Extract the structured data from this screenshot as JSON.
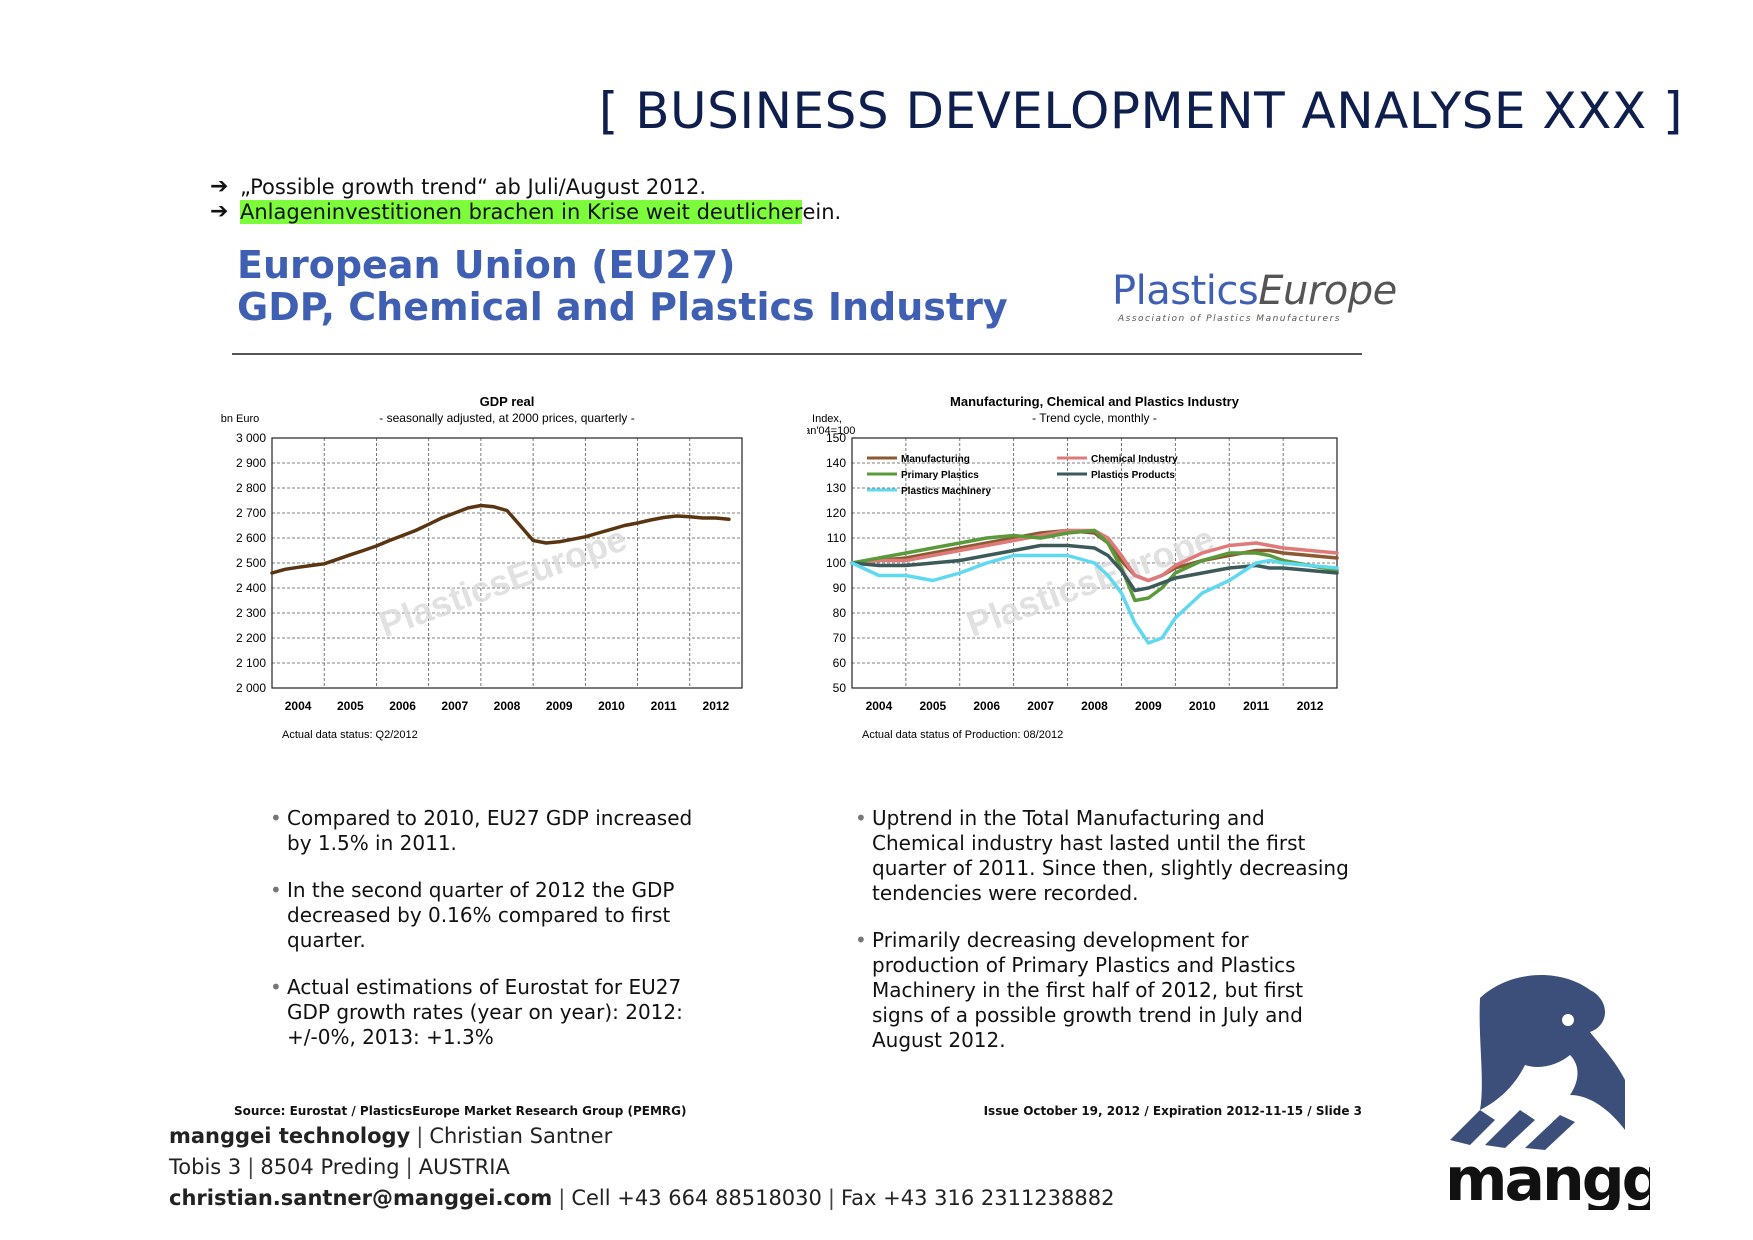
{
  "header": {
    "title": "[ BUSINESS DEVELOPMENT ANALYSE XXX ]"
  },
  "bullets": [
    {
      "text": "„Possible growth trend“ ab Juli/August 2012."
    },
    {
      "highlighted": "Anlageninvestitionen brachen in Krise weit deutlicher",
      "rest": " ein."
    }
  ],
  "slide": {
    "title_line1": "European Union (EU27)",
    "title_line2": "GDP, Chemical and Plastics Industry",
    "logo_main": "Plastics",
    "logo_italic": "Europe",
    "logo_sub": "Association of Plastics Manufacturers",
    "left_points": [
      "Compared to 2010, EU27 GDP increased by 1.5% in 2011.",
      "In the second quarter of 2012 the GDP decreased by 0.16% compared to first quarter.",
      "Actual estimations of Eurostat for EU27 GDP growth rates (year on year): 2012: +/-0%, 2013: +1.3%"
    ],
    "right_points": [
      "Uptrend in the Total Manufacturing and Chemical industry hast lasted until the first quarter of 2011. Since then, slightly decreasing tendencies were recorded.",
      "Primarily decreasing development for production of Primary Plastics and Plastics Machinery in the first half of 2012, but first signs of a possible growth trend in July and August 2012."
    ],
    "source": "Source: Eurostat / PlasticsEurope Market Research Group (PEMRG)",
    "issue": "Issue October 19, 2012 / Expiration 2012-11-15 / Slide 3"
  },
  "chart_data": [
    {
      "type": "line",
      "title": "GDP real",
      "subtitle": "- seasonally adjusted, at 2000 prices, quarterly -",
      "ylabel": "bn Euro",
      "ylim": [
        2000,
        3000
      ],
      "yticks": [
        "3 000",
        "2 900",
        "2 800",
        "2 700",
        "2 600",
        "2 500",
        "2 400",
        "2 300",
        "2 200",
        "2 100",
        "2 000"
      ],
      "xticks": [
        "2004",
        "2005",
        "2006",
        "2007",
        "2008",
        "2009",
        "2010",
        "2011",
        "2012"
      ],
      "xlim": [
        2003.5,
        2012.5
      ],
      "note": "Actual data status: Q2/2012",
      "watermark": "PlasticsEurope",
      "series": [
        {
          "color": "#5a3512",
          "x": [
            2003.5,
            2003.75,
            2004.0,
            2004.25,
            2004.5,
            2004.75,
            2005.0,
            2005.25,
            2005.5,
            2005.75,
            2006.0,
            2006.25,
            2006.5,
            2006.75,
            2007.0,
            2007.25,
            2007.5,
            2007.75,
            2008.0,
            2008.25,
            2008.5,
            2008.75,
            2009.0,
            2009.25,
            2009.5,
            2009.75,
            2010.0,
            2010.25,
            2010.5,
            2010.75,
            2011.0,
            2011.25,
            2011.5,
            2011.75,
            2012.0,
            2012.25
          ],
          "y": [
            2460,
            2475,
            2483,
            2490,
            2497,
            2515,
            2533,
            2550,
            2568,
            2590,
            2610,
            2630,
            2655,
            2680,
            2700,
            2720,
            2730,
            2725,
            2710,
            2650,
            2590,
            2580,
            2585,
            2595,
            2605,
            2620,
            2635,
            2650,
            2660,
            2672,
            2682,
            2688,
            2685,
            2680,
            2680,
            2675
          ]
        }
      ]
    },
    {
      "type": "line",
      "title": "Manufacturing, Chemical and Plastics Industry",
      "subtitle": "- Trend cycle, monthly -",
      "ylabel": "Index, Jan'04=100",
      "ylim": [
        50,
        150
      ],
      "yticks": [
        "150",
        "140",
        "130",
        "120",
        "110",
        "100",
        "90",
        "80",
        "70",
        "60",
        "50"
      ],
      "xticks": [
        "2004",
        "2005",
        "2006",
        "2007",
        "2008",
        "2009",
        "2010",
        "2011",
        "2012"
      ],
      "xlim": [
        2003.5,
        2012.5
      ],
      "note": "Actual data status of Production: 08/2012",
      "watermark": "PlasticsEurope",
      "series": [
        {
          "name": "Manufacturing",
          "color": "#8b5a33",
          "x": [
            2003.5,
            2004.0,
            2004.5,
            2005.0,
            2005.5,
            2006.0,
            2006.5,
            2007.0,
            2007.5,
            2008.0,
            2008.25,
            2008.5,
            2008.75,
            2009.0,
            2009.25,
            2009.5,
            2010.0,
            2010.5,
            2011.0,
            2011.25,
            2011.5,
            2012.0,
            2012.5
          ],
          "y": [
            100,
            101,
            102,
            104,
            106,
            108,
            110,
            112,
            113,
            112,
            108,
            101,
            95,
            93,
            95,
            98,
            101,
            103,
            105,
            105,
            104,
            103,
            102
          ]
        },
        {
          "name": "Chemical Industry",
          "color": "#e07a7a",
          "x": [
            2003.5,
            2004.0,
            2004.5,
            2005.0,
            2005.5,
            2006.0,
            2006.5,
            2007.0,
            2007.5,
            2008.0,
            2008.25,
            2008.5,
            2008.75,
            2009.0,
            2009.25,
            2009.5,
            2010.0,
            2010.5,
            2011.0,
            2011.25,
            2011.5,
            2012.0,
            2012.5
          ],
          "y": [
            100,
            101,
            101,
            103,
            105,
            107,
            109,
            111,
            113,
            113,
            110,
            103,
            95,
            93,
            95,
            99,
            104,
            107,
            108,
            107,
            106,
            105,
            104
          ]
        },
        {
          "name": "Primary Plastics",
          "color": "#5a9a3a",
          "x": [
            2003.5,
            2004.0,
            2004.5,
            2005.0,
            2005.5,
            2006.0,
            2006.5,
            2007.0,
            2007.5,
            2008.0,
            2008.25,
            2008.5,
            2008.75,
            2009.0,
            2009.25,
            2009.5,
            2010.0,
            2010.5,
            2011.0,
            2011.25,
            2011.5,
            2012.0,
            2012.5
          ],
          "y": [
            100,
            102,
            104,
            106,
            108,
            110,
            111,
            110,
            112,
            113,
            108,
            98,
            85,
            86,
            90,
            96,
            101,
            104,
            104,
            103,
            101,
            99,
            97
          ]
        },
        {
          "name": "Plastics Products",
          "color": "#3d5a5a",
          "x": [
            2003.5,
            2004.0,
            2004.5,
            2005.0,
            2005.5,
            2006.0,
            2006.5,
            2007.0,
            2007.5,
            2008.0,
            2008.25,
            2008.5,
            2008.75,
            2009.0,
            2009.25,
            2009.5,
            2010.0,
            2010.5,
            2011.0,
            2011.25,
            2011.5,
            2012.0,
            2012.5
          ],
          "y": [
            100,
            99,
            99,
            100,
            101,
            103,
            105,
            107,
            107,
            106,
            103,
            97,
            89,
            90,
            92,
            94,
            96,
            98,
            99,
            98,
            98,
            97,
            96
          ]
        },
        {
          "name": "Plastics Machinery",
          "color": "#5fd9f0",
          "x": [
            2003.5,
            2004.0,
            2004.5,
            2005.0,
            2005.5,
            2006.0,
            2006.5,
            2007.0,
            2007.5,
            2008.0,
            2008.25,
            2008.5,
            2008.75,
            2009.0,
            2009.25,
            2009.5,
            2010.0,
            2010.5,
            2011.0,
            2011.25,
            2011.5,
            2012.0,
            2012.5
          ],
          "y": [
            100,
            95,
            95,
            93,
            96,
            100,
            103,
            103,
            103,
            100,
            95,
            88,
            76,
            68,
            70,
            78,
            88,
            93,
            100,
            101,
            100,
            99,
            98
          ]
        }
      ]
    }
  ],
  "footer": {
    "company": "manggei technology",
    "person": "Christian Santner",
    "street": "Tobis 3",
    "city": "8504 Preding",
    "country": "AUSTRIA",
    "email": "christian.santner@manggei.com",
    "cell": "Cell +43 664 88518030",
    "fax": "Fax +43 316 2311238882",
    "separator": "|",
    "logo_text": "manggei"
  }
}
